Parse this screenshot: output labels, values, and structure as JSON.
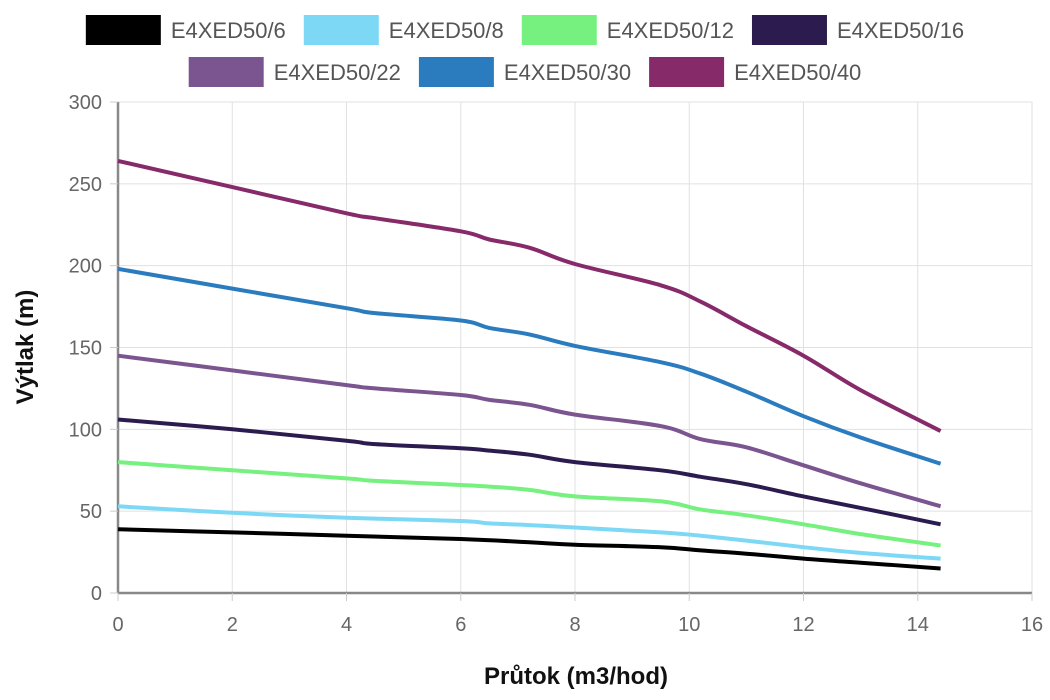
{
  "chart_data": {
    "type": "line",
    "xlabel": "Průtok (m3/hod)",
    "ylabel": "Výtlak (m)",
    "xlim": [
      0,
      16
    ],
    "ylim": [
      0,
      300
    ],
    "xticks": [
      0,
      2,
      4,
      6,
      8,
      10,
      12,
      14,
      16
    ],
    "yticks": [
      0,
      50,
      100,
      150,
      200,
      250,
      300
    ],
    "grid": true,
    "legend_position": "top",
    "series": [
      {
        "name": "E4XED50/6",
        "color": "#000000",
        "x": [
          0,
          2,
          4,
          6,
          7.2,
          8,
          9.5,
          10.2,
          11,
          12,
          13,
          14.4
        ],
        "y": [
          39,
          37,
          35,
          33,
          31,
          29.5,
          28,
          26,
          24,
          21,
          18.5,
          15
        ]
      },
      {
        "name": "E4XED50/8",
        "color": "#7dd8f5",
        "x": [
          0,
          2,
          4,
          6,
          6.5,
          7.2,
          8,
          9.5,
          10.2,
          11,
          12,
          13,
          14.4
        ],
        "y": [
          53,
          49,
          46,
          44,
          42.5,
          41.5,
          40,
          37,
          35,
          32,
          28,
          24.5,
          21
        ]
      },
      {
        "name": "E4XED50/12",
        "color": "#76f07e",
        "x": [
          0,
          2,
          4,
          4.5,
          6,
          6.5,
          7.2,
          8,
          9.5,
          10.2,
          11,
          12,
          13,
          14.4
        ],
        "y": [
          80,
          75,
          70,
          68.5,
          66,
          65,
          63,
          59,
          56,
          51,
          47.5,
          42,
          36,
          29
        ]
      },
      {
        "name": "E4XED50/16",
        "color": "#2b1b4f",
        "x": [
          0,
          2,
          4,
          4.5,
          6,
          6.5,
          7.2,
          8,
          9.5,
          10.2,
          11,
          12,
          13,
          14.4
        ],
        "y": [
          106,
          100,
          93,
          91,
          88.5,
          87,
          84.5,
          80,
          75,
          71,
          66.5,
          59,
          52,
          42
        ]
      },
      {
        "name": "E4XED50/22",
        "color": "#7b5590",
        "x": [
          0,
          2,
          4,
          4.5,
          6,
          6.5,
          7.2,
          8,
          9.5,
          10.2,
          11,
          12,
          13,
          14.4
        ],
        "y": [
          145,
          136,
          127,
          125,
          121,
          118,
          115,
          109,
          102,
          94,
          89,
          78,
          67,
          53
        ]
      },
      {
        "name": "E4XED50/30",
        "color": "#2b7cbf",
        "x": [
          0,
          2,
          4,
          4.5,
          6,
          6.5,
          7.2,
          8,
          9.5,
          10.2,
          11,
          12,
          13,
          14.4
        ],
        "y": [
          198,
          186,
          174,
          171,
          166.5,
          162,
          158,
          151,
          141,
          134,
          123,
          108,
          95,
          79
        ]
      },
      {
        "name": "E4XED50/40",
        "color": "#862a6a",
        "x": [
          0,
          2,
          4,
          4.5,
          6,
          6.5,
          7.2,
          8,
          9.5,
          10.2,
          11,
          12,
          13,
          14.4
        ],
        "y": [
          264,
          248,
          232,
          229,
          221,
          216,
          211,
          201,
          188,
          178,
          163,
          145,
          124,
          99
        ]
      }
    ]
  }
}
